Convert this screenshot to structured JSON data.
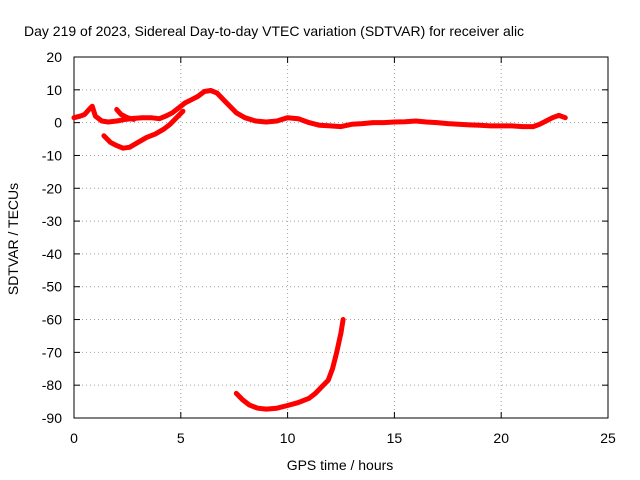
{
  "chart_data": {
    "type": "line",
    "title": "Day 219 of 2023, Sidereal Day-to-day VTEC variation (SDTVAR) for receiver alic",
    "xlabel": "GPS time / hours",
    "ylabel": "SDTVAR / TECUs",
    "xlim": [
      0,
      25
    ],
    "ylim": [
      -90,
      20
    ],
    "xticks": [
      0,
      5,
      10,
      15,
      20,
      25
    ],
    "yticks": [
      20,
      10,
      0,
      -10,
      -20,
      -30,
      -40,
      -50,
      -60,
      -70,
      -80,
      -90
    ],
    "grid": true,
    "series_color": "#ff0000",
    "series": [
      {
        "name": "main-trace",
        "points": [
          [
            0.0,
            1.5
          ],
          [
            0.3,
            2.0
          ],
          [
            0.5,
            2.5
          ],
          [
            0.7,
            4.0
          ],
          [
            0.85,
            5.0
          ],
          [
            1.0,
            2.0
          ],
          [
            1.3,
            0.5
          ],
          [
            1.6,
            0.2
          ],
          [
            2.0,
            0.5
          ],
          [
            2.4,
            1.0
          ],
          [
            2.8,
            1.3
          ],
          [
            3.2,
            1.5
          ],
          [
            3.6,
            1.5
          ],
          [
            4.0,
            1.2
          ],
          [
            4.3,
            2.0
          ],
          [
            4.6,
            3.0
          ],
          [
            4.9,
            4.5
          ],
          [
            5.2,
            6.0
          ],
          [
            5.5,
            7.0
          ],
          [
            5.8,
            8.0
          ],
          [
            6.1,
            9.5
          ],
          [
            6.4,
            9.8
          ],
          [
            6.7,
            9.0
          ],
          [
            7.0,
            7.0
          ],
          [
            7.3,
            5.0
          ],
          [
            7.6,
            3.0
          ],
          [
            8.0,
            1.5
          ],
          [
            8.5,
            0.5
          ],
          [
            9.0,
            0.2
          ],
          [
            9.5,
            0.5
          ],
          [
            10.0,
            1.5
          ],
          [
            10.5,
            1.2
          ],
          [
            11.0,
            0.0
          ],
          [
            11.5,
            -0.8
          ],
          [
            12.0,
            -1.0
          ],
          [
            12.5,
            -1.2
          ],
          [
            13.0,
            -0.5
          ],
          [
            13.5,
            -0.3
          ],
          [
            14.0,
            0.0
          ],
          [
            14.5,
            0.0
          ],
          [
            15.0,
            0.2
          ],
          [
            15.5,
            0.3
          ],
          [
            16.0,
            0.5
          ],
          [
            16.5,
            0.2
          ],
          [
            17.0,
            0.0
          ],
          [
            17.5,
            -0.3
          ],
          [
            18.0,
            -0.5
          ],
          [
            18.5,
            -0.7
          ],
          [
            19.0,
            -0.8
          ],
          [
            19.5,
            -1.0
          ],
          [
            20.0,
            -1.0
          ],
          [
            20.5,
            -1.0
          ],
          [
            21.0,
            -1.2
          ],
          [
            21.5,
            -1.2
          ],
          [
            21.8,
            -0.5
          ],
          [
            22.1,
            0.5
          ],
          [
            22.4,
            1.5
          ],
          [
            22.7,
            2.2
          ],
          [
            23.0,
            1.5
          ]
        ]
      },
      {
        "name": "lower-branch",
        "points": [
          [
            1.4,
            -4.0
          ],
          [
            1.7,
            -6.0
          ],
          [
            2.0,
            -7.0
          ],
          [
            2.3,
            -7.8
          ],
          [
            2.6,
            -7.5
          ],
          [
            3.0,
            -6.0
          ],
          [
            3.4,
            -4.5
          ],
          [
            3.8,
            -3.5
          ],
          [
            4.2,
            -2.0
          ],
          [
            4.5,
            -0.5
          ],
          [
            4.8,
            1.5
          ],
          [
            5.1,
            3.5
          ]
        ]
      },
      {
        "name": "short-branch",
        "points": [
          [
            2.0,
            4.0
          ],
          [
            2.2,
            2.5
          ],
          [
            2.5,
            1.5
          ],
          [
            2.8,
            1.0
          ]
        ]
      },
      {
        "name": "deep-arc",
        "points": [
          [
            7.6,
            -82.5
          ],
          [
            7.9,
            -84.5
          ],
          [
            8.2,
            -86.0
          ],
          [
            8.6,
            -87.0
          ],
          [
            9.0,
            -87.3
          ],
          [
            9.5,
            -87.0
          ],
          [
            10.0,
            -86.2
          ],
          [
            10.5,
            -85.3
          ],
          [
            11.0,
            -84.0
          ],
          [
            11.3,
            -82.5
          ],
          [
            11.6,
            -80.5
          ],
          [
            11.9,
            -78.5
          ],
          [
            12.1,
            -75.0
          ],
          [
            12.3,
            -70.0
          ],
          [
            12.5,
            -64.0
          ],
          [
            12.6,
            -60.0
          ]
        ]
      }
    ]
  }
}
